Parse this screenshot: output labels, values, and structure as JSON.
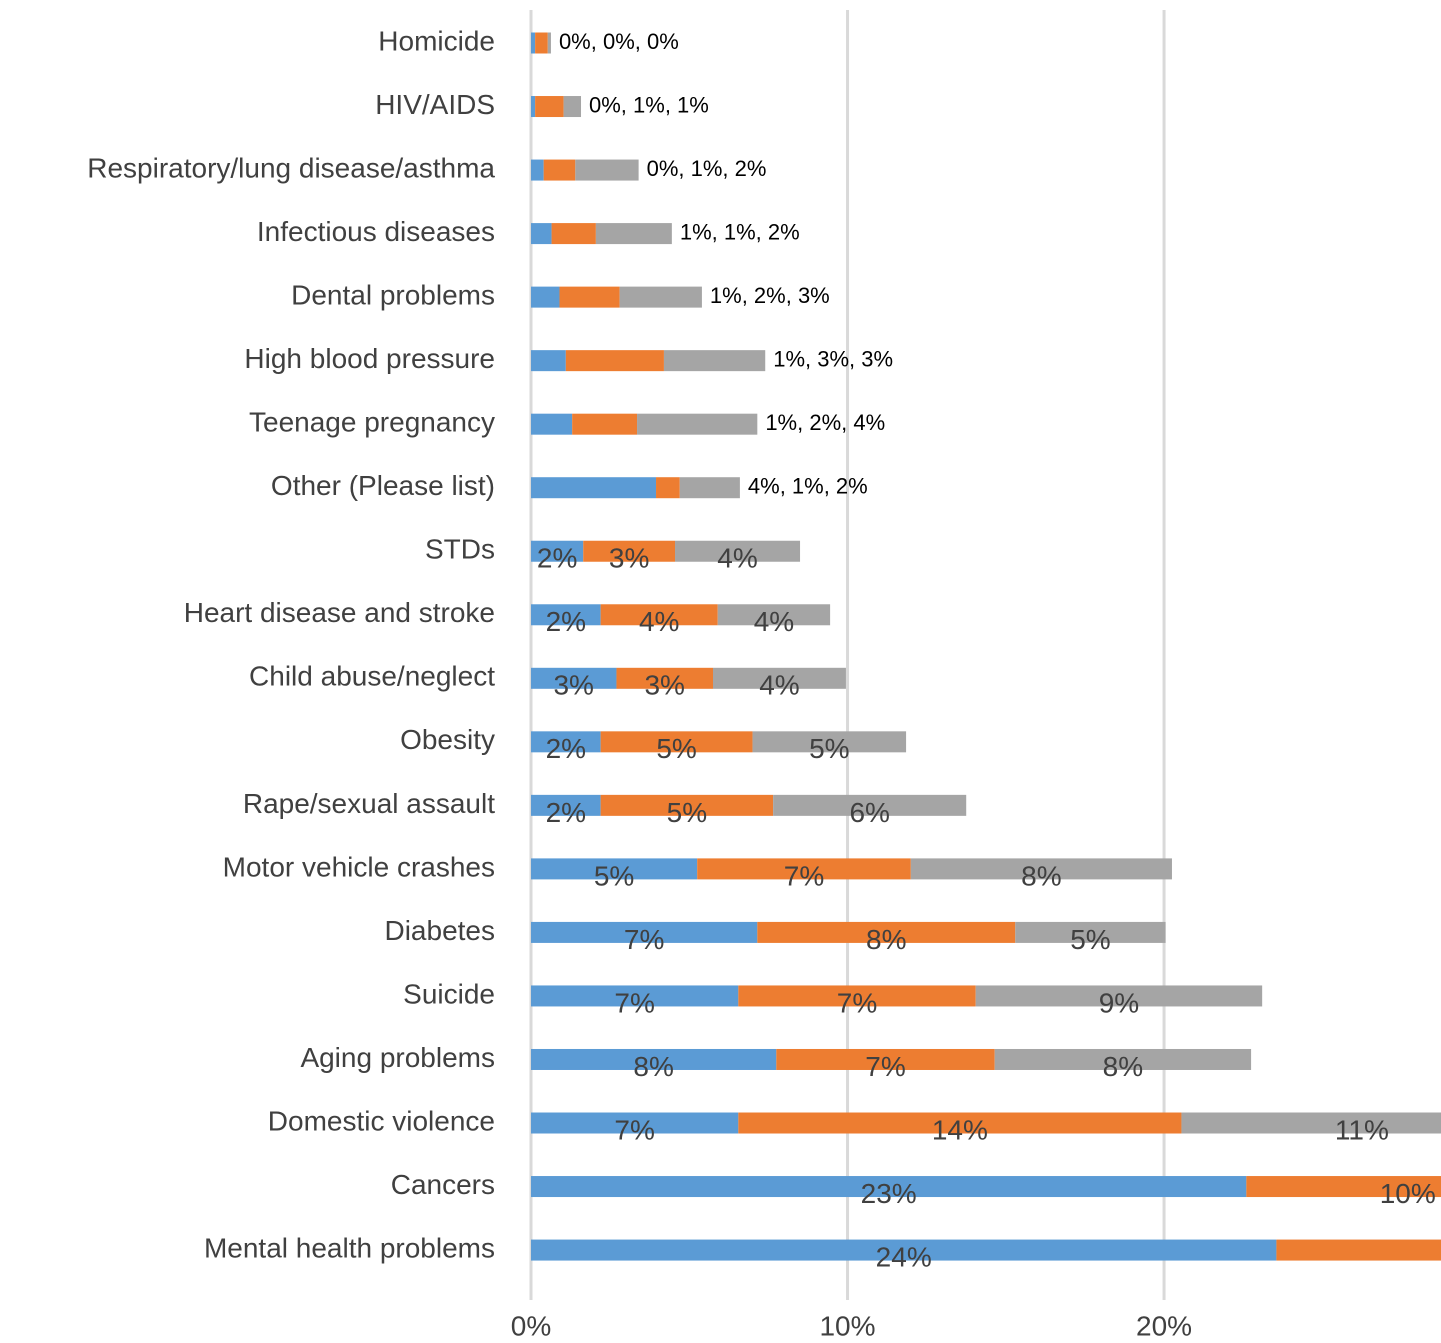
{
  "chart_data": {
    "type": "stacked-barh",
    "categories": [
      "Homicide",
      "HIV/AIDS",
      "Respiratory/lung disease/asthma",
      "Infectious diseases",
      "Dental problems",
      "High blood pressure",
      "Teenage pregnancy",
      "Other (Please list)",
      "STDs",
      "Heart disease and stroke",
      "Child abuse/neglect",
      "Obesity",
      "Rape/sexual assault",
      "Motor vehicle crashes",
      "Diabetes",
      "Suicide",
      "Aging problems",
      "Domestic violence",
      "Cancers",
      "Mental health problems"
    ],
    "series": [
      {
        "color": "#5b9bd5",
        "values": [
          0.13,
          0.13,
          0.4,
          0.65,
          0.9,
          1.1,
          1.3,
          3.95,
          1.65,
          2.2,
          2.7,
          2.2,
          2.2,
          5.25,
          7.15,
          6.55,
          7.75,
          6.55,
          22.6,
          23.55
        ],
        "value_labels": [
          null,
          null,
          null,
          null,
          null,
          null,
          null,
          null,
          "2%",
          "2%",
          "3%",
          "2%",
          "2%",
          "5%",
          "7%",
          "7%",
          "8%",
          "7%",
          "23%",
          "24%"
        ]
      },
      {
        "color": "#ed7d31",
        "values": [
          0.4,
          0.9,
          1.0,
          1.4,
          1.9,
          3.1,
          2.05,
          0.75,
          2.9,
          3.7,
          3.05,
          4.8,
          5.45,
          6.75,
          8.15,
          7.5,
          6.9,
          14.0,
          10.2,
          9
        ],
        "value_labels": [
          null,
          null,
          null,
          null,
          null,
          null,
          null,
          null,
          "3%",
          "4%",
          "3%",
          "5%",
          "5%",
          "7%",
          "8%",
          "7%",
          "7%",
          "14%",
          "10%",
          null
        ]
      },
      {
        "color": "#a5a5a5",
        "values": [
          0.1,
          0.55,
          2.0,
          2.4,
          2.6,
          3.2,
          3.8,
          1.9,
          3.95,
          3.55,
          4.2,
          4.85,
          6.1,
          8.25,
          4.75,
          9.05,
          8.1,
          11.4,
          null,
          null
        ],
        "value_labels": [
          null,
          null,
          null,
          null,
          null,
          null,
          null,
          null,
          "4%",
          "4%",
          "4%",
          "5%",
          "6%",
          "8%",
          "5%",
          "9%",
          "8%",
          "11%",
          null,
          null
        ]
      }
    ],
    "bar_end_labels": [
      "0%, 0%, 0%",
      "0%, 1%, 1%",
      "0%, 1%, 2%",
      "1%, 1%, 2%",
      "1%, 2%, 3%",
      "1%, 3%, 3%",
      "1%, 2%, 4%",
      "4%, 1%, 2%",
      null,
      null,
      null,
      null,
      null,
      null,
      null,
      null,
      null,
      null,
      null,
      null
    ],
    "xlim": [
      0,
      28.75
    ],
    "xticks": [
      {
        "value": 0,
        "label": "0%"
      },
      {
        "value": 10,
        "label": "10%"
      },
      {
        "value": 20,
        "label": "20%"
      }
    ],
    "grid": true
  }
}
